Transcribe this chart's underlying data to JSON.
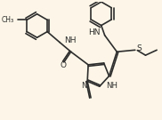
{
  "bg_color": "#fdf6e8",
  "line_color": "#2d2d2d",
  "lw": 1.2,
  "fs": 6.5,
  "figsize": [
    1.82,
    1.35
  ],
  "dpi": 100,
  "xlim": [
    0,
    9.1
  ],
  "ylim": [
    0,
    6.75
  ]
}
